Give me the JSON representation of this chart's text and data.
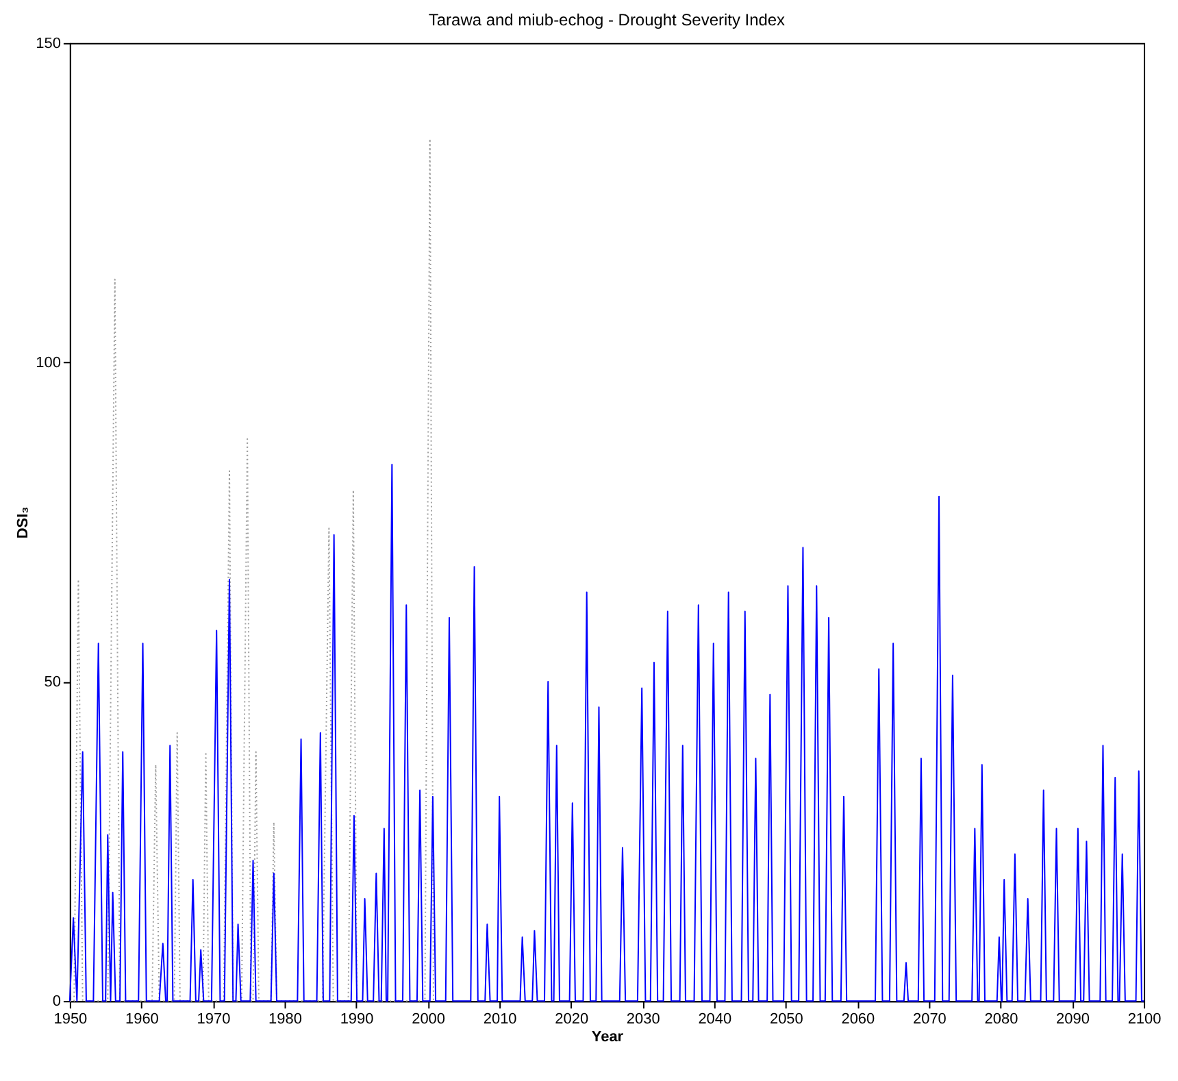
{
  "chart_data": {
    "type": "line",
    "title": "Tarawa and miub-echog - Drought Severity Index",
    "xlabel": "Year",
    "ylabel": "DSI₃",
    "xlim": [
      1950,
      2100
    ],
    "xticks": [
      1950,
      1960,
      1970,
      1980,
      1990,
      2000,
      2010,
      2020,
      2030,
      2040,
      2050,
      2060,
      2070,
      2080,
      2090,
      2100
    ],
    "ylim": [
      0,
      150
    ],
    "yticks": [
      0,
      50,
      100,
      150
    ],
    "grid": false,
    "marker": "none",
    "series": [
      {
        "color": "#a0a0a0",
        "line_style": "dotted",
        "x": [
          1950.0,
          1950.6,
          1951.2,
          1951.8,
          1955.3,
          1956.3,
          1957.0,
          1961.5,
          1962.0,
          1962.5,
          1964.6,
          1965.0,
          1965.4,
          1968.6,
          1969.0,
          1969.4,
          1971.5,
          1972.3,
          1972.8,
          1974.0,
          1974.8,
          1975.3,
          1975.6,
          1976.0,
          1976.4,
          1978.1,
          1978.5,
          1978.9,
          1985.3,
          1986.2,
          1986.8,
          1988.9,
          1989.6,
          1990.1,
          1999.6,
          2000.3,
          2000.8,
          2001.5
        ],
        "values": [
          0,
          0,
          66,
          0,
          0,
          113,
          0,
          0,
          37,
          0,
          0,
          42,
          0,
          0,
          39,
          0,
          0,
          83,
          0,
          0,
          88,
          0,
          0,
          39,
          0,
          0,
          28,
          0,
          0,
          74,
          0,
          0,
          80,
          0,
          0,
          135,
          0,
          0
        ]
      },
      {
        "color": "#0000ff",
        "line_style": "solid",
        "x": [
          1950.0,
          1950.5,
          1951.0,
          1951.8,
          1952.3,
          1953.3,
          1954.0,
          1954.6,
          1955.0,
          1955.3,
          1955.7,
          1956.0,
          1956.4,
          1957.0,
          1957.4,
          1957.8,
          1959.6,
          1960.2,
          1960.7,
          1962.5,
          1963.0,
          1963.4,
          1963.6,
          1964.0,
          1964.4,
          1966.8,
          1967.2,
          1967.6,
          1968.0,
          1968.3,
          1968.7,
          1969.8,
          1970.5,
          1971.0,
          1971.6,
          1972.3,
          1972.8,
          1973.2,
          1973.5,
          1973.9,
          1975.2,
          1975.6,
          1976.0,
          1978.1,
          1978.5,
          1978.9,
          1981.8,
          1982.3,
          1982.7,
          1984.5,
          1985.0,
          1985.4,
          1986.3,
          1986.9,
          1987.4,
          1989.3,
          1989.7,
          1990.1,
          1990.9,
          1991.2,
          1991.6,
          1992.4,
          1992.8,
          1993.2,
          1993.5,
          1993.9,
          1994.2,
          1994.4,
          1995.0,
          1995.5,
          1996.5,
          1997.0,
          1997.5,
          1998.5,
          1998.9,
          1999.3,
          2000.3,
          2000.7,
          2001.1,
          2002.5,
          2003.0,
          2003.5,
          2006.0,
          2006.5,
          2007.0,
          2008.0,
          2008.3,
          2008.7,
          2009.7,
          2010.0,
          2010.4,
          2012.9,
          2013.2,
          2013.6,
          2014.6,
          2014.9,
          2015.3,
          2016.3,
          2016.8,
          2017.3,
          2017.6,
          2018.0,
          2018.4,
          2019.8,
          2020.2,
          2020.6,
          2021.7,
          2022.2,
          2022.7,
          2023.5,
          2023.9,
          2024.3,
          2026.8,
          2027.2,
          2027.6,
          2029.3,
          2029.9,
          2030.4,
          2031.1,
          2031.6,
          2032.1,
          2032.9,
          2033.5,
          2034.0,
          2035.2,
          2035.6,
          2036.0,
          2037.2,
          2037.8,
          2038.3,
          2039.4,
          2039.9,
          2040.4,
          2041.5,
          2042.0,
          2042.5,
          2043.8,
          2044.3,
          2044.8,
          2045.4,
          2045.8,
          2046.2,
          2047.4,
          2047.8,
          2048.2,
          2049.7,
          2050.3,
          2050.8,
          2051.8,
          2052.4,
          2052.9,
          2053.8,
          2054.3,
          2054.8,
          2055.5,
          2056.0,
          2056.5,
          2057.7,
          2058.1,
          2058.5,
          2062.5,
          2063.0,
          2063.5,
          2064.5,
          2065.0,
          2065.5,
          2066.5,
          2066.8,
          2067.1,
          2068.5,
          2068.9,
          2069.3,
          2070.8,
          2071.4,
          2071.9,
          2072.8,
          2073.3,
          2073.8,
          2076.0,
          2076.4,
          2076.8,
          2077.0,
          2077.4,
          2077.8,
          2079.5,
          2079.8,
          2080.1,
          2080.2,
          2080.5,
          2080.9,
          2081.6,
          2082.0,
          2082.4,
          2083.4,
          2083.8,
          2084.2,
          2085.6,
          2086.0,
          2086.4,
          2087.4,
          2087.8,
          2088.2,
          2090.4,
          2090.8,
          2091.2,
          2091.6,
          2092.0,
          2092.4,
          2093.9,
          2094.3,
          2094.7,
          2095.6,
          2096.0,
          2096.4,
          2096.6,
          2097.0,
          2097.4,
          2098.9,
          2099.3,
          2099.7,
          2100.0
        ],
        "values": [
          0,
          13,
          0,
          39,
          0,
          0,
          56,
          0,
          0,
          26,
          0,
          17,
          0,
          0,
          39,
          0,
          0,
          56,
          0,
          0,
          9,
          0,
          0,
          40,
          0,
          0,
          19,
          0,
          0,
          8,
          0,
          0,
          58,
          0,
          0,
          66,
          0,
          0,
          12,
          0,
          0,
          22,
          0,
          0,
          20,
          0,
          0,
          41,
          0,
          0,
          42,
          0,
          0,
          73,
          0,
          0,
          29,
          0,
          0,
          16,
          0,
          0,
          20,
          0,
          0,
          27,
          0,
          0,
          84,
          0,
          0,
          62,
          0,
          0,
          33,
          0,
          0,
          32,
          0,
          0,
          60,
          0,
          0,
          68,
          0,
          0,
          12,
          0,
          0,
          32,
          0,
          0,
          10,
          0,
          0,
          11,
          0,
          0,
          50,
          0,
          0,
          40,
          0,
          0,
          31,
          0,
          0,
          64,
          0,
          0,
          46,
          0,
          0,
          24,
          0,
          0,
          49,
          0,
          0,
          53,
          0,
          0,
          61,
          0,
          0,
          40,
          0,
          0,
          62,
          0,
          0,
          56,
          0,
          0,
          64,
          0,
          0,
          61,
          0,
          0,
          38,
          0,
          0,
          48,
          0,
          0,
          65,
          0,
          0,
          71,
          0,
          0,
          65,
          0,
          0,
          60,
          0,
          0,
          32,
          0,
          0,
          52,
          0,
          0,
          56,
          0,
          0,
          6,
          0,
          0,
          38,
          0,
          0,
          79,
          0,
          0,
          51,
          0,
          0,
          27,
          0,
          0,
          37,
          0,
          0,
          10,
          0,
          0,
          19,
          0,
          0,
          23,
          0,
          0,
          16,
          0,
          0,
          33,
          0,
          0,
          27,
          0,
          0,
          27,
          0,
          0,
          25,
          0,
          0,
          40,
          0,
          0,
          35,
          0,
          0,
          23,
          0,
          0,
          36,
          0,
          0
        ]
      }
    ]
  }
}
